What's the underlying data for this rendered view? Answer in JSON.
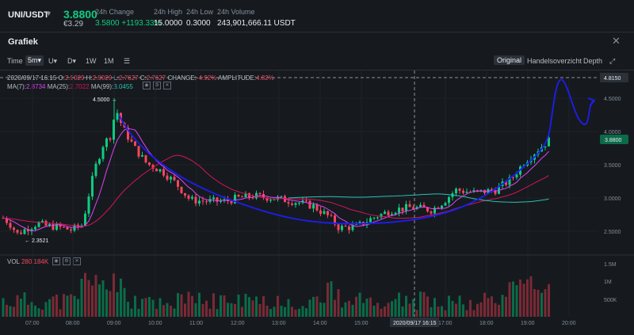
{
  "ticker": {
    "symbol": "UNI/USDT",
    "last_price": "3.8800",
    "fiat_price": "€3.29",
    "stats": [
      {
        "label": "24h Change",
        "value": "3.5800 +1193.33%"
      },
      {
        "label": "24h High",
        "value": "15.0000"
      },
      {
        "label": "24h Low",
        "value": "0.3000"
      },
      {
        "label": "24h Volume",
        "value": "243,901,666.11 USDT"
      }
    ]
  },
  "panel": {
    "title": "Grafiek"
  },
  "toolbar": {
    "time_label": "Time",
    "intervals": [
      "5m",
      "U",
      "D",
      "1W",
      "1M"
    ],
    "active_interval": "5m",
    "views": [
      "Original",
      "Handelsoverzicht",
      "Depth"
    ],
    "active_view": "Original"
  },
  "ohlc_line": {
    "date": "2020/09/17 16:15",
    "open_label": "O:",
    "open": "2.9029",
    "high_label": "H:",
    "high": "2.9029",
    "low_label": "L:",
    "low": "2.7627",
    "close_label": "C:",
    "close": "2.7627",
    "change_label": "CHANGE:",
    "change": "-4.92%",
    "amplitude_label": "AMPLITUDE:",
    "amplitude": "4.82%"
  },
  "ma_line": {
    "ma7_label": "MA(7):",
    "ma7": "2.8734",
    "ma25_label": "MA(25):",
    "ma25": "2.7022",
    "ma99_label": "MA(99):",
    "ma99": "3.0455"
  },
  "vol_line": {
    "label": "VOL",
    "value": "280.184K"
  },
  "annotations": {
    "high_marker": "4.5000",
    "low_marker": "2.3521",
    "crosshair_price": "4.8150",
    "last_price_tag": "3.8800"
  },
  "price_axis": [
    "4.5000",
    "4.0000",
    "3.5000",
    "3.0000",
    "2.5000"
  ],
  "volume_axis": [
    "1.5M",
    "1M",
    "500K"
  ],
  "time_axis": [
    "07:00",
    "08:00",
    "09:00",
    "10:00",
    "11:00",
    "12:00",
    "13:00",
    "14:00",
    "15:00",
    "17:00",
    "18:00",
    "19:00",
    "20:00"
  ],
  "crosshair_time": "2020/09/17 16:15",
  "colors": {
    "up": "#0ecb81",
    "down": "#f6465d",
    "ma7": "#e040fb",
    "ma25": "#d4145a",
    "ma99": "#2bc0b4",
    "drawing": "#1d1df2"
  },
  "icons": [
    "chevron-down-icon",
    "close-icon",
    "settings-icon",
    "eye-icon",
    "gear-icon",
    "fullscreen-icon"
  ]
}
